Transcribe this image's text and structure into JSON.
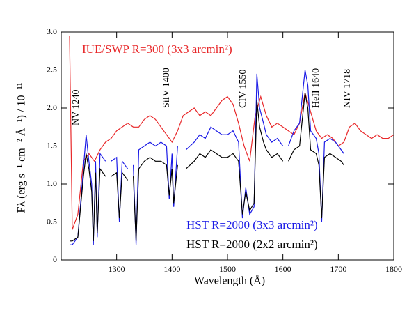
{
  "chart_data": {
    "type": "line",
    "x_label": "Wavelength (Å)",
    "y_label": "Fλ (erg s⁻¹ cm⁻² Å⁻¹) / 10⁻¹¹",
    "xlim": [
      1200,
      1800
    ],
    "xticks": [
      1300,
      1400,
      1500,
      1600,
      1700,
      1800
    ],
    "ylim": [
      0,
      3
    ],
    "yticks": [
      0,
      0.5,
      {
        "value": 1,
        "label": "1.0"
      },
      1.5,
      {
        "value": 2,
        "label": "2.0"
      },
      2.5,
      {
        "value": 3,
        "label": "3.0"
      }
    ],
    "annotations": [
      "NV 1240",
      "SiIV 1400",
      "CIV 1550",
      "HeII 1640",
      "NIV 1718"
    ],
    "series": [
      {
        "name": "IUE/SWP R=300 (3x3 arcmin²)",
        "color": "#e8282a",
        "x": [
          1215,
          1220,
          1230,
          1240,
          1250,
          1260,
          1270,
          1280,
          1290,
          1300,
          1310,
          1320,
          1330,
          1340,
          1350,
          1360,
          1370,
          1380,
          1390,
          1400,
          1410,
          1420,
          1430,
          1440,
          1450,
          1460,
          1470,
          1480,
          1490,
          1500,
          1510,
          1520,
          1530,
          1540,
          1550,
          1560,
          1570,
          1580,
          1590,
          1600,
          1610,
          1620,
          1630,
          1640,
          1650,
          1660,
          1670,
          1680,
          1690,
          1700,
          1710,
          1720,
          1730,
          1740,
          1750,
          1760,
          1770,
          1780,
          1790,
          1800
        ],
        "values": [
          2.95,
          0.4,
          0.6,
          1.3,
          1.4,
          1.3,
          1.45,
          1.55,
          1.6,
          1.7,
          1.75,
          1.8,
          1.75,
          1.75,
          1.85,
          1.9,
          1.85,
          1.75,
          1.65,
          1.55,
          1.7,
          1.9,
          1.95,
          2.0,
          1.9,
          1.95,
          1.9,
          2.0,
          2.1,
          2.15,
          2.05,
          1.8,
          1.5,
          1.3,
          1.9,
          2.15,
          1.9,
          1.75,
          1.8,
          1.75,
          1.7,
          1.65,
          1.8,
          2.2,
          1.95,
          1.7,
          1.6,
          1.65,
          1.6,
          1.5,
          1.55,
          1.75,
          1.8,
          1.7,
          1.65,
          1.6,
          1.65,
          1.6,
          1.6,
          1.65
        ]
      },
      {
        "name": "HST R=2000 (3x3 arcmin²)",
        "color": "#1a1ae6",
        "x": [
          1215,
          1220,
          1230,
          1240,
          1245,
          1250,
          1255,
          1258,
          1262,
          1265,
          1270,
          1280,
          1285,
          1290,
          1300,
          1305,
          1310,
          1320,
          1325,
          1330,
          1335,
          1340,
          1350,
          1360,
          1370,
          1380,
          1390,
          1395,
          1400,
          1403,
          1410,
          1418,
          1425,
          1440,
          1450,
          1460,
          1470,
          1480,
          1490,
          1500,
          1510,
          1520,
          1527,
          1533,
          1540,
          1548,
          1553,
          1558,
          1565,
          1570,
          1580,
          1590,
          1600,
          1605,
          1610,
          1620,
          1630,
          1640,
          1645,
          1650,
          1660,
          1665,
          1670,
          1675,
          1685,
          1695,
          1705,
          1710
        ],
        "values": [
          0.2,
          0.2,
          0.3,
          1.2,
          1.65,
          1.3,
          1.0,
          0.2,
          1.3,
          0.3,
          1.4,
          1.3,
          null,
          1.3,
          1.35,
          0.5,
          1.3,
          1.2,
          null,
          1.25,
          0.2,
          1.45,
          1.5,
          1.55,
          1.5,
          1.55,
          1.5,
          0.8,
          1.4,
          0.7,
          1.5,
          null,
          1.45,
          1.55,
          1.65,
          1.6,
          1.75,
          1.7,
          1.65,
          1.65,
          1.7,
          1.55,
          0.55,
          0.95,
          0.6,
          0.7,
          2.45,
          2.0,
          1.8,
          1.65,
          1.55,
          1.6,
          1.5,
          null,
          1.5,
          1.7,
          1.8,
          2.5,
          2.3,
          1.7,
          1.6,
          1.4,
          0.5,
          1.55,
          1.6,
          1.55,
          1.45,
          1.4
        ]
      },
      {
        "name": "HST R=2000 (2x2 arcmin²)",
        "color": "#000000",
        "x": [
          1215,
          1220,
          1230,
          1240,
          1245,
          1250,
          1255,
          1258,
          1262,
          1265,
          1270,
          1280,
          1285,
          1290,
          1300,
          1305,
          1310,
          1320,
          1325,
          1330,
          1335,
          1340,
          1350,
          1360,
          1370,
          1380,
          1390,
          1395,
          1400,
          1403,
          1410,
          1418,
          1425,
          1440,
          1450,
          1460,
          1470,
          1480,
          1490,
          1500,
          1510,
          1520,
          1527,
          1533,
          1540,
          1548,
          1553,
          1558,
          1565,
          1570,
          1580,
          1590,
          1600,
          1605,
          1610,
          1620,
          1630,
          1640,
          1645,
          1650,
          1660,
          1665,
          1670,
          1675,
          1685,
          1695,
          1705,
          1710
        ],
        "values": [
          0.25,
          0.25,
          0.3,
          1.1,
          1.4,
          1.2,
          0.9,
          0.25,
          1.15,
          0.35,
          1.2,
          1.1,
          null,
          1.1,
          1.15,
          0.55,
          1.15,
          1.05,
          null,
          1.1,
          0.25,
          1.2,
          1.3,
          1.35,
          1.3,
          1.3,
          1.25,
          0.85,
          1.2,
          0.75,
          1.25,
          null,
          1.2,
          1.3,
          1.4,
          1.35,
          1.45,
          1.4,
          1.35,
          1.35,
          1.4,
          1.3,
          0.6,
          0.9,
          0.65,
          0.75,
          2.1,
          1.75,
          1.55,
          1.45,
          1.35,
          1.4,
          1.3,
          null,
          1.3,
          1.45,
          1.5,
          2.2,
          2.0,
          1.45,
          1.4,
          1.25,
          0.55,
          1.35,
          1.4,
          1.35,
          1.3,
          1.25
        ]
      }
    ]
  }
}
